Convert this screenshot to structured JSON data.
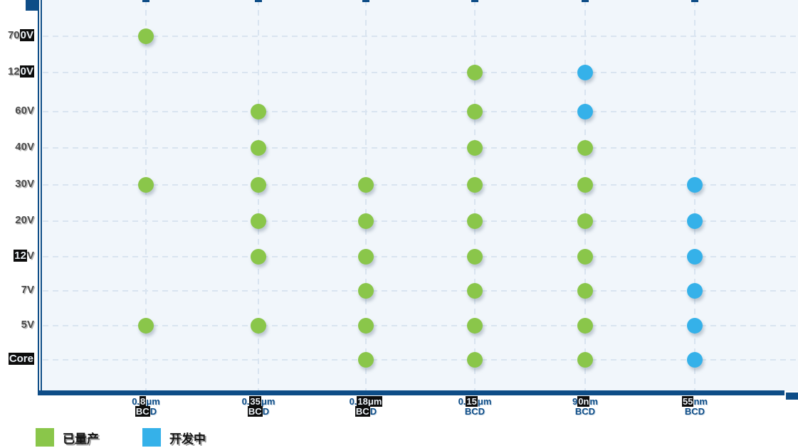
{
  "colors": {
    "navy": "#0E4D87",
    "grid": "#D9E4F0",
    "plot_bg": "#F1F6FB",
    "y_label_text": "#4B4B4B",
    "highlight_bg": "#0D0D0D",
    "highlight_text": "#EDF2F7",
    "green": "#8AC64A",
    "blue": "#35B1E9"
  },
  "legend": {
    "items": [
      {
        "label": "已量产",
        "color": "#8AC64A"
      },
      {
        "label": "开发中",
        "color": "#35B1E9"
      }
    ]
  },
  "chart_data": {
    "type": "scatter",
    "title": "",
    "xlabel": "",
    "ylabel": "",
    "grid": "dashed",
    "legend_position": "bottom-left",
    "x_categories": [
      {
        "name": "0.8μm BCD",
        "line1": [
          [
            "0.",
            0
          ],
          [
            "8",
            1
          ],
          [
            "μm",
            0
          ]
        ],
        "line2": [
          [
            "BC",
            1
          ],
          [
            "D",
            0
          ]
        ]
      },
      {
        "name": "0.35μm BCD",
        "line1": [
          [
            "0.",
            0
          ],
          [
            "35",
            1
          ],
          [
            "μm",
            0
          ]
        ],
        "line2": [
          [
            "BC",
            1
          ],
          [
            "D",
            0
          ]
        ]
      },
      {
        "name": "0.18μm BCD",
        "line1": [
          [
            "0.",
            0
          ],
          [
            "18μm",
            1
          ]
        ],
        "line2": [
          [
            "BC",
            1
          ],
          [
            "D",
            0
          ]
        ]
      },
      {
        "name": "0.15μm BCD",
        "line1": [
          [
            "0.",
            0
          ],
          [
            "15",
            1
          ],
          [
            "μm",
            0
          ]
        ],
        "line2": [
          [
            "BCD",
            0
          ]
        ]
      },
      {
        "name": "90nm BCD",
        "line1": [
          [
            "9",
            0
          ],
          [
            "0n",
            1
          ],
          [
            "m",
            0
          ]
        ],
        "line2": [
          [
            "BCD",
            0
          ]
        ]
      },
      {
        "name": "55nm BCD",
        "line1": [
          [
            "55",
            1
          ],
          [
            "nm",
            0
          ]
        ],
        "line2": [
          [
            "BCD",
            0
          ]
        ]
      }
    ],
    "y_categories": [
      {
        "label": "700V",
        "segments": [
          [
            "70",
            0
          ],
          [
            "0V",
            1
          ]
        ]
      },
      {
        "label": "120V",
        "segments": [
          [
            "12",
            0
          ],
          [
            "0V",
            1
          ]
        ]
      },
      {
        "label": "60V",
        "segments": [
          [
            "60V",
            0
          ]
        ]
      },
      {
        "label": "40V",
        "segments": [
          [
            "40V",
            0
          ]
        ]
      },
      {
        "label": "30V",
        "segments": [
          [
            "30V",
            0
          ]
        ]
      },
      {
        "label": "20V",
        "segments": [
          [
            "20V",
            0
          ]
        ]
      },
      {
        "label": "12V",
        "segments": [
          [
            "12",
            1
          ],
          [
            "V",
            0
          ]
        ]
      },
      {
        "label": "7V",
        "segments": [
          [
            "7V",
            0
          ]
        ]
      },
      {
        "label": "5V",
        "segments": [
          [
            "5V",
            0
          ]
        ]
      },
      {
        "label": "Core",
        "segments": [
          [
            "Core",
            1
          ]
        ]
      }
    ],
    "series": [
      {
        "name": "已量产",
        "color": "#8AC64A",
        "points": [
          [
            "0.8μm BCD",
            "700V"
          ],
          [
            "0.8μm BCD",
            "30V"
          ],
          [
            "0.8μm BCD",
            "5V"
          ],
          [
            "0.35μm BCD",
            "60V"
          ],
          [
            "0.35μm BCD",
            "40V"
          ],
          [
            "0.35μm BCD",
            "30V"
          ],
          [
            "0.35μm BCD",
            "20V"
          ],
          [
            "0.35μm BCD",
            "12V"
          ],
          [
            "0.35μm BCD",
            "5V"
          ],
          [
            "0.18μm BCD",
            "30V"
          ],
          [
            "0.18μm BCD",
            "20V"
          ],
          [
            "0.18μm BCD",
            "12V"
          ],
          [
            "0.18μm BCD",
            "7V"
          ],
          [
            "0.18μm BCD",
            "5V"
          ],
          [
            "0.18μm BCD",
            "Core"
          ],
          [
            "0.15μm BCD",
            "120V"
          ],
          [
            "0.15μm BCD",
            "60V"
          ],
          [
            "0.15μm BCD",
            "40V"
          ],
          [
            "0.15μm BCD",
            "30V"
          ],
          [
            "0.15μm BCD",
            "20V"
          ],
          [
            "0.15μm BCD",
            "12V"
          ],
          [
            "0.15μm BCD",
            "7V"
          ],
          [
            "0.15μm BCD",
            "5V"
          ],
          [
            "0.15μm BCD",
            "Core"
          ],
          [
            "90nm BCD",
            "40V"
          ],
          [
            "90nm BCD",
            "30V"
          ],
          [
            "90nm BCD",
            "20V"
          ],
          [
            "90nm BCD",
            "12V"
          ],
          [
            "90nm BCD",
            "7V"
          ],
          [
            "90nm BCD",
            "5V"
          ],
          [
            "90nm BCD",
            "Core"
          ]
        ]
      },
      {
        "name": "开发中",
        "color": "#35B1E9",
        "points": [
          [
            "90nm BCD",
            "120V"
          ],
          [
            "90nm BCD",
            "60V"
          ],
          [
            "55nm BCD",
            "30V"
          ],
          [
            "55nm BCD",
            "20V"
          ],
          [
            "55nm BCD",
            "12V"
          ],
          [
            "55nm BCD",
            "7V"
          ],
          [
            "55nm BCD",
            "5V"
          ],
          [
            "55nm BCD",
            "Core"
          ]
        ]
      }
    ]
  }
}
